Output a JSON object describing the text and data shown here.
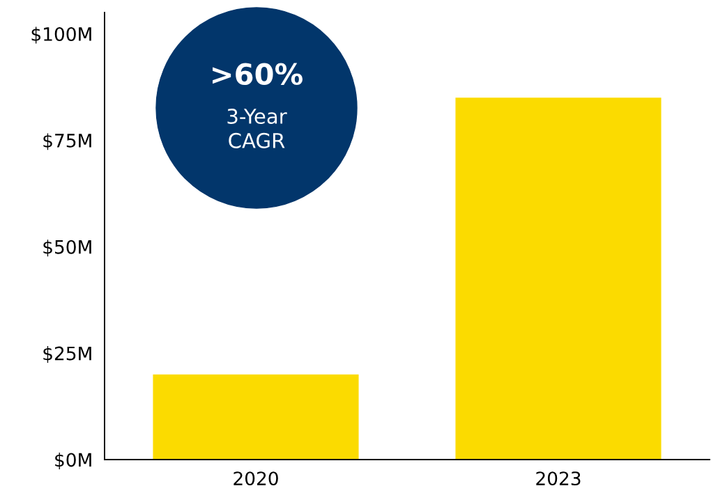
{
  "chart_data": {
    "type": "bar",
    "categories": [
      "2020",
      "2023"
    ],
    "values": [
      20,
      85
    ],
    "color": "#fbdb00",
    "ylim": [
      0,
      105
    ],
    "yticks": [
      {
        "value": 0,
        "label": "$0M"
      },
      {
        "value": 25,
        "label": "$25M"
      },
      {
        "value": 50,
        "label": "$50M"
      },
      {
        "value": 75,
        "label": "$75M"
      },
      {
        "value": 100,
        "label": "$100M"
      }
    ],
    "grid": false,
    "annotations": [
      ">60%\n3-Year\nCAGR"
    ]
  }
}
